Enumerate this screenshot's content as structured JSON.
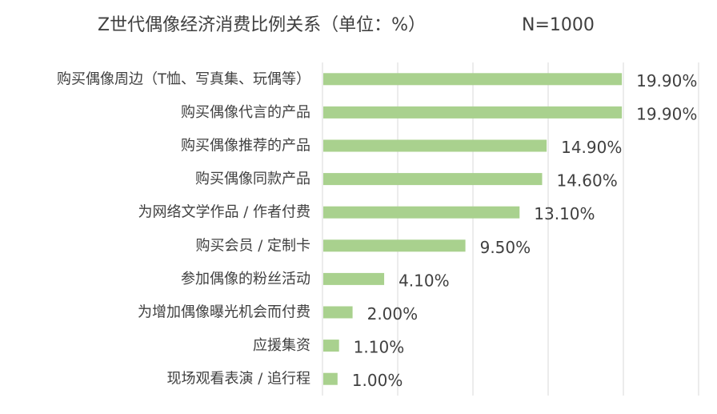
{
  "chart_data": {
    "type": "bar",
    "orientation": "horizontal",
    "title": "Z世代偶像经济消费比例关系（单位：%）",
    "subtitle": "N=1000",
    "categories": [
      "购买偶像周边（T恤、写真集、玩偶等）",
      "购买偶像代言的产品",
      "购买偶像推荐的产品",
      "购买偶像同款产品",
      "为网络文学作品 / 作者付费",
      "购买会员 / 定制卡",
      "参加偶像的粉丝活动",
      "为增加偶像曝光机会而付费",
      "应援集资",
      "现场观看表演 / 追行程"
    ],
    "values": [
      19.9,
      19.9,
      14.9,
      14.6,
      13.1,
      9.5,
      4.1,
      2.0,
      1.1,
      1.0
    ],
    "data_labels": [
      "19.90%",
      "19.90%",
      "14.90%",
      "14.60%",
      "13.10%",
      "9.50%",
      "4.10%",
      "2.00%",
      "1.10%",
      "1.00%"
    ],
    "xlim": [
      0,
      25
    ],
    "grid": "vertical",
    "bar_color": "#a9d18e",
    "grid_color": "#d9d9d9"
  }
}
